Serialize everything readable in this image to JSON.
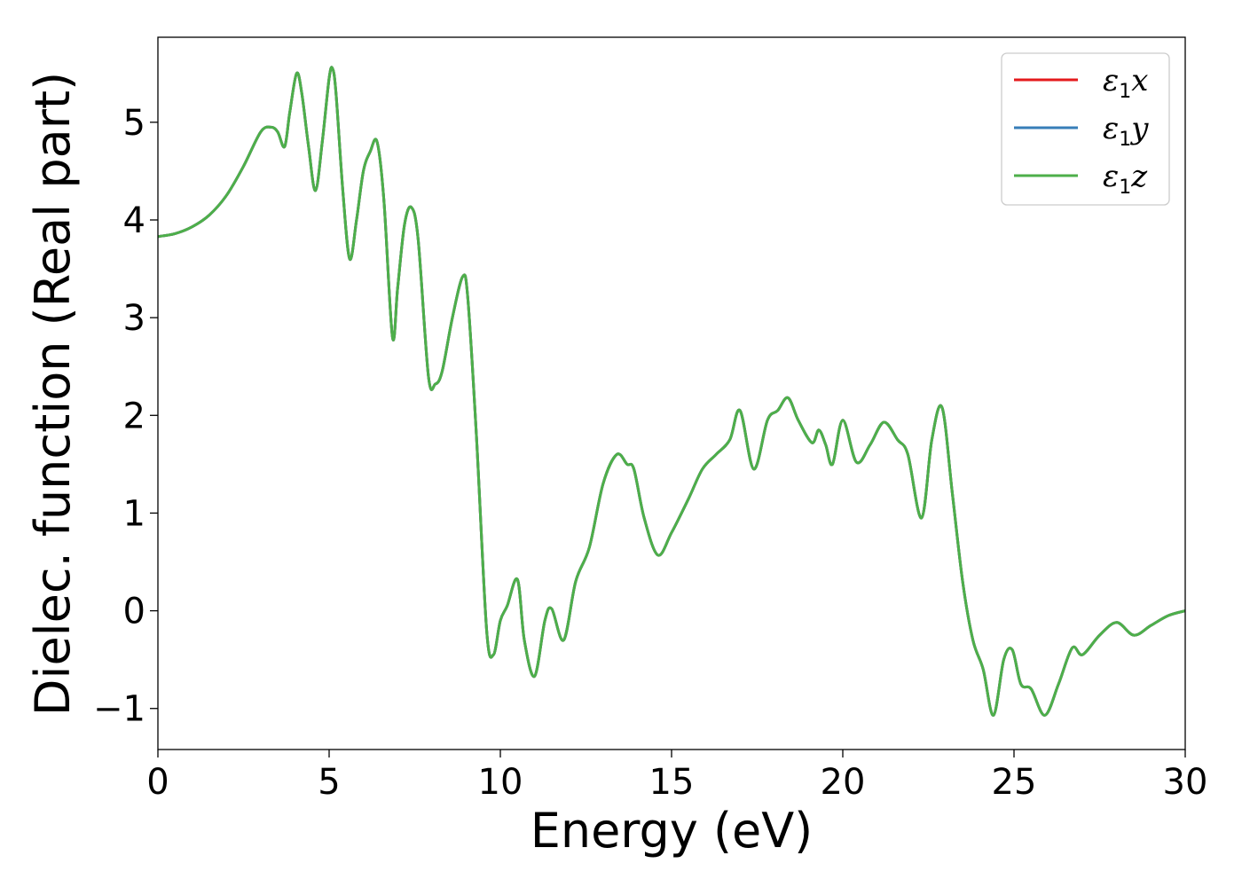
{
  "chart_data": {
    "type": "line",
    "title": "",
    "xlabel": "Energy (eV)",
    "ylabel": "Dielec. function (Real part)",
    "xlim": [
      0,
      30
    ],
    "ylim": [
      -1.42,
      5.87
    ],
    "xticks": [
      0,
      5,
      10,
      15,
      20,
      25,
      30
    ],
    "yticks": [
      -1,
      0,
      1,
      2,
      3,
      4,
      5
    ],
    "xtick_labels": [
      "0",
      "5",
      "10",
      "15",
      "20",
      "25",
      "30"
    ],
    "ytick_labels": [
      "−1",
      "0",
      "1",
      "2",
      "3",
      "4",
      "5"
    ],
    "grid": false,
    "legend_position": "top-right",
    "x": [
      0,
      0.5,
      1.0,
      1.5,
      2.0,
      2.5,
      3.0,
      3.3,
      3.5,
      3.7,
      3.85,
      4.05,
      4.2,
      4.4,
      4.6,
      4.8,
      5.0,
      5.1,
      5.2,
      5.4,
      5.6,
      5.8,
      6.0,
      6.2,
      6.4,
      6.6,
      6.85,
      7.0,
      7.2,
      7.4,
      7.6,
      7.9,
      8.1,
      8.3,
      8.6,
      8.9,
      9.05,
      9.3,
      9.6,
      9.8,
      10.0,
      10.2,
      10.5,
      10.7,
      11.0,
      11.3,
      11.5,
      11.85,
      12.2,
      12.6,
      13.0,
      13.4,
      13.7,
      13.9,
      14.2,
      14.6,
      15.0,
      15.5,
      15.9,
      16.3,
      16.7,
      17.0,
      17.4,
      17.8,
      18.1,
      18.4,
      18.7,
      19.1,
      19.3,
      19.5,
      19.7,
      20.0,
      20.4,
      20.8,
      21.2,
      21.6,
      21.9,
      22.3,
      22.6,
      22.9,
      23.2,
      23.5,
      23.8,
      24.1,
      24.4,
      24.7,
      24.95,
      25.2,
      25.5,
      25.9,
      26.3,
      26.7,
      27.0,
      27.5,
      28.0,
      28.5,
      29.0,
      29.5,
      30.0
    ],
    "series": [
      {
        "name": "ε₁x",
        "color": "#e41a1c",
        "values": [
          3.83,
          3.86,
          3.93,
          4.05,
          4.25,
          4.55,
          4.9,
          4.95,
          4.9,
          4.75,
          5.1,
          5.5,
          5.3,
          4.75,
          4.3,
          4.8,
          5.45,
          5.55,
          5.3,
          4.3,
          3.6,
          4.0,
          4.5,
          4.7,
          4.8,
          4.2,
          2.8,
          3.3,
          3.95,
          4.13,
          3.8,
          2.4,
          2.32,
          2.45,
          3.0,
          3.42,
          3.2,
          1.8,
          -0.2,
          -0.45,
          -0.1,
          0.05,
          0.32,
          -0.3,
          -0.67,
          -0.1,
          0.02,
          -0.3,
          0.3,
          0.65,
          1.3,
          1.6,
          1.5,
          1.45,
          0.95,
          0.57,
          0.8,
          1.15,
          1.45,
          1.6,
          1.75,
          2.05,
          1.45,
          1.95,
          2.05,
          2.18,
          1.95,
          1.72,
          1.85,
          1.7,
          1.5,
          1.95,
          1.52,
          1.7,
          1.93,
          1.75,
          1.6,
          0.95,
          1.75,
          2.08,
          1.2,
          0.3,
          -0.3,
          -0.6,
          -1.07,
          -0.5,
          -0.4,
          -0.75,
          -0.8,
          -1.07,
          -0.75,
          -0.38,
          -0.45,
          -0.25,
          -0.12,
          -0.25,
          -0.15,
          -0.05,
          0.0
        ]
      },
      {
        "name": "ε₁y",
        "color": "#377eb8",
        "values": [
          3.83,
          3.86,
          3.93,
          4.05,
          4.25,
          4.55,
          4.9,
          4.95,
          4.9,
          4.75,
          5.1,
          5.5,
          5.3,
          4.75,
          4.3,
          4.8,
          5.45,
          5.55,
          5.3,
          4.3,
          3.6,
          4.0,
          4.5,
          4.7,
          4.8,
          4.2,
          2.8,
          3.3,
          3.95,
          4.13,
          3.8,
          2.4,
          2.32,
          2.45,
          3.0,
          3.42,
          3.2,
          1.8,
          -0.2,
          -0.45,
          -0.1,
          0.05,
          0.32,
          -0.3,
          -0.67,
          -0.1,
          0.02,
          -0.3,
          0.3,
          0.65,
          1.3,
          1.6,
          1.5,
          1.45,
          0.95,
          0.57,
          0.8,
          1.15,
          1.45,
          1.6,
          1.75,
          2.05,
          1.45,
          1.95,
          2.05,
          2.18,
          1.95,
          1.72,
          1.85,
          1.7,
          1.5,
          1.95,
          1.52,
          1.7,
          1.93,
          1.75,
          1.6,
          0.95,
          1.75,
          2.08,
          1.2,
          0.3,
          -0.3,
          -0.6,
          -1.07,
          -0.5,
          -0.4,
          -0.75,
          -0.8,
          -1.07,
          -0.75,
          -0.38,
          -0.45,
          -0.25,
          -0.12,
          -0.25,
          -0.15,
          -0.05,
          0.0
        ]
      },
      {
        "name": "ε₁z",
        "color": "#4daf4a",
        "values": [
          3.83,
          3.86,
          3.93,
          4.05,
          4.25,
          4.55,
          4.9,
          4.95,
          4.9,
          4.75,
          5.1,
          5.5,
          5.3,
          4.75,
          4.3,
          4.8,
          5.45,
          5.55,
          5.3,
          4.3,
          3.6,
          4.0,
          4.5,
          4.7,
          4.8,
          4.2,
          2.8,
          3.3,
          3.95,
          4.13,
          3.8,
          2.4,
          2.32,
          2.45,
          3.0,
          3.42,
          3.2,
          1.8,
          -0.2,
          -0.45,
          -0.1,
          0.05,
          0.32,
          -0.3,
          -0.67,
          -0.1,
          0.02,
          -0.3,
          0.3,
          0.65,
          1.3,
          1.6,
          1.5,
          1.45,
          0.95,
          0.57,
          0.8,
          1.15,
          1.45,
          1.6,
          1.75,
          2.05,
          1.45,
          1.95,
          2.05,
          2.18,
          1.95,
          1.72,
          1.85,
          1.7,
          1.5,
          1.95,
          1.52,
          1.7,
          1.93,
          1.75,
          1.6,
          0.95,
          1.75,
          2.08,
          1.2,
          0.3,
          -0.3,
          -0.6,
          -1.07,
          -0.5,
          -0.4,
          -0.75,
          -0.8,
          -1.07,
          -0.75,
          -0.38,
          -0.45,
          -0.25,
          -0.12,
          -0.25,
          -0.15,
          -0.05,
          0.0
        ]
      }
    ],
    "legend": [
      {
        "symbol": "ε",
        "subscript": "1",
        "component": "x",
        "color": "#e41a1c"
      },
      {
        "symbol": "ε",
        "subscript": "1",
        "component": "y",
        "color": "#377eb8"
      },
      {
        "symbol": "ε",
        "subscript": "1",
        "component": "z",
        "color": "#4daf4a"
      }
    ]
  }
}
